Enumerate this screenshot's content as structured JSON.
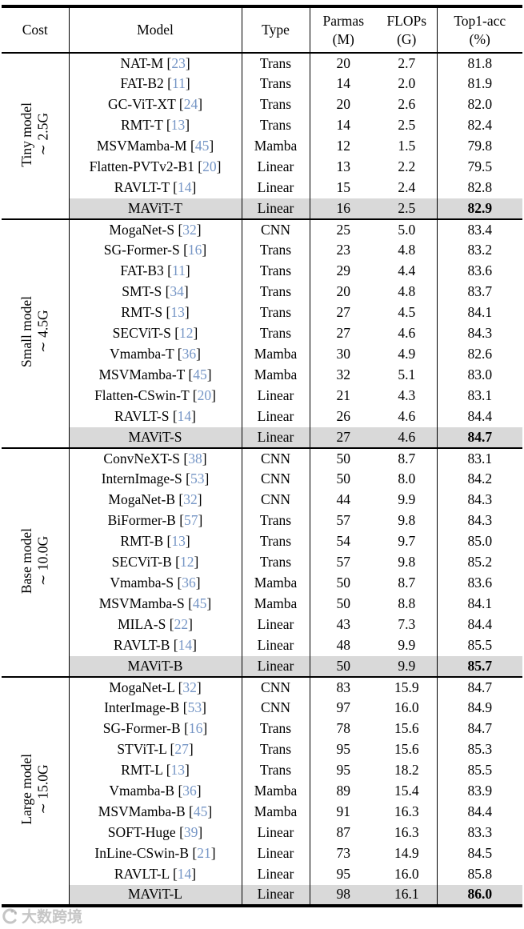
{
  "colors": {
    "citation_blue": "#7595c5",
    "highlight_gray": "#d9d9d9",
    "rule_black": "#000000",
    "watermark_gray": "#a9a9a9"
  },
  "header": {
    "cost": "Cost",
    "model": "Model",
    "type": "Type",
    "params": [
      "Parmas",
      "(M)"
    ],
    "flops": [
      "FLOPs",
      "(G)"
    ],
    "top1": [
      "Top1-acc",
      "(%)"
    ]
  },
  "watermark": {
    "text": "大数跨境",
    "icon": "logo-circle-icon"
  },
  "table": {
    "groups": [
      {
        "cost_line1": "Tiny model",
        "cost_line2": "∼ 2.5G",
        "rows": [
          {
            "model": "NAT-M",
            "cite": "23",
            "type": "Trans",
            "params": "20",
            "flops": "2.7",
            "top1": "81.8",
            "highlight": false
          },
          {
            "model": "FAT-B2",
            "cite": "11",
            "type": "Trans",
            "params": "14",
            "flops": "2.0",
            "top1": "81.9",
            "highlight": false
          },
          {
            "model": "GC-ViT-XT",
            "cite": "24",
            "type": "Trans",
            "params": "20",
            "flops": "2.6",
            "top1": "82.0",
            "highlight": false
          },
          {
            "model": "RMT-T",
            "cite": "13",
            "type": "Trans",
            "params": "14",
            "flops": "2.5",
            "top1": "82.4",
            "highlight": false
          },
          {
            "model": "MSVMamba-M",
            "cite": "45",
            "type": "Mamba",
            "params": "12",
            "flops": "1.5",
            "top1": "79.8",
            "highlight": false
          },
          {
            "model": "Flatten-PVTv2-B1",
            "cite": "20",
            "type": "Linear",
            "params": "13",
            "flops": "2.2",
            "top1": "79.5",
            "highlight": false
          },
          {
            "model": "RAVLT-T",
            "cite": "14",
            "type": "Linear",
            "params": "15",
            "flops": "2.4",
            "top1": "82.8",
            "highlight": false
          },
          {
            "model": "MAViT-T",
            "cite": null,
            "type": "Linear",
            "params": "16",
            "flops": "2.5",
            "top1": "82.9",
            "highlight": true
          }
        ]
      },
      {
        "cost_line1": "Small model",
        "cost_line2": "∼ 4.5G",
        "rows": [
          {
            "model": "MogaNet-S",
            "cite": "32",
            "type": "CNN",
            "params": "25",
            "flops": "5.0",
            "top1": "83.4",
            "highlight": false
          },
          {
            "model": "SG-Former-S",
            "cite": "16",
            "type": "Trans",
            "params": "23",
            "flops": "4.8",
            "top1": "83.2",
            "highlight": false
          },
          {
            "model": "FAT-B3",
            "cite": "11",
            "type": "Trans",
            "params": "29",
            "flops": "4.4",
            "top1": "83.6",
            "highlight": false
          },
          {
            "model": "SMT-S",
            "cite": "34",
            "type": "Trans",
            "params": "20",
            "flops": "4.8",
            "top1": "83.7",
            "highlight": false
          },
          {
            "model": "RMT-S",
            "cite": "13",
            "type": "Trans",
            "params": "27",
            "flops": "4.5",
            "top1": "84.1",
            "highlight": false
          },
          {
            "model": "SECViT-S",
            "cite": "12",
            "type": "Trans",
            "params": "27",
            "flops": "4.6",
            "top1": "84.3",
            "highlight": false
          },
          {
            "model": "Vmamba-T",
            "cite": "36",
            "type": "Mamba",
            "params": "30",
            "flops": "4.9",
            "top1": "82.6",
            "highlight": false
          },
          {
            "model": "MSVMamba-T",
            "cite": "45",
            "type": "Mamba",
            "params": "32",
            "flops": "5.1",
            "top1": "83.0",
            "highlight": false
          },
          {
            "model": "Flatten-CSwin-T",
            "cite": "20",
            "type": "Linear",
            "params": "21",
            "flops": "4.3",
            "top1": "83.1",
            "highlight": false
          },
          {
            "model": "RAVLT-S",
            "cite": "14",
            "type": "Linear",
            "params": "26",
            "flops": "4.6",
            "top1": "84.4",
            "highlight": false
          },
          {
            "model": "MAViT-S",
            "cite": null,
            "type": "Linear",
            "params": "27",
            "flops": "4.6",
            "top1": "84.7",
            "highlight": true
          }
        ]
      },
      {
        "cost_line1": "Base model",
        "cost_line2": "∼ 10.0G",
        "rows": [
          {
            "model": "ConvNeXT-S",
            "cite": "38",
            "type": "CNN",
            "params": "50",
            "flops": "8.7",
            "top1": "83.1",
            "highlight": false
          },
          {
            "model": "InternImage-S",
            "cite": "53",
            "type": "CNN",
            "params": "50",
            "flops": "8.0",
            "top1": "84.2",
            "highlight": false
          },
          {
            "model": "MogaNet-B",
            "cite": "32",
            "type": "CNN",
            "params": "44",
            "flops": "9.9",
            "top1": "84.3",
            "highlight": false
          },
          {
            "model": "BiFormer-B",
            "cite": "57",
            "type": "Trans",
            "params": "57",
            "flops": "9.8",
            "top1": "84.3",
            "highlight": false
          },
          {
            "model": "RMT-B",
            "cite": "13",
            "type": "Trans",
            "params": "54",
            "flops": "9.7",
            "top1": "85.0",
            "highlight": false
          },
          {
            "model": "SECViT-B",
            "cite": "12",
            "type": "Trans",
            "params": "57",
            "flops": "9.8",
            "top1": "85.2",
            "highlight": false
          },
          {
            "model": "Vmamba-S",
            "cite": "36",
            "type": "Mamba",
            "params": "50",
            "flops": "8.7",
            "top1": "83.6",
            "highlight": false
          },
          {
            "model": "MSVMamba-S",
            "cite": "45",
            "type": "Mamba",
            "params": "50",
            "flops": "8.8",
            "top1": "84.1",
            "highlight": false
          },
          {
            "model": "MILA-S",
            "cite": "22",
            "type": "Linear",
            "params": "43",
            "flops": "7.3",
            "top1": "84.4",
            "highlight": false
          },
          {
            "model": "RAVLT-B",
            "cite": "14",
            "type": "Linear",
            "params": "48",
            "flops": "9.9",
            "top1": "85.5",
            "highlight": false
          },
          {
            "model": "MAViT-B",
            "cite": null,
            "type": "Linear",
            "params": "50",
            "flops": "9.9",
            "top1": "85.7",
            "highlight": true
          }
        ]
      },
      {
        "cost_line1": "Large model",
        "cost_line2": "∼ 15.0G",
        "rows": [
          {
            "model": "MogaNet-L",
            "cite": "32",
            "type": "CNN",
            "params": "83",
            "flops": "15.9",
            "top1": "84.7",
            "highlight": false
          },
          {
            "model": "InterImage-B",
            "cite": "53",
            "type": "CNN",
            "params": "97",
            "flops": "16.0",
            "top1": "84.9",
            "highlight": false
          },
          {
            "model": "SG-Former-B",
            "cite": "16",
            "type": "Trans",
            "params": "78",
            "flops": "15.6",
            "top1": "84.7",
            "highlight": false
          },
          {
            "model": "STViT-L",
            "cite": "27",
            "type": "Trans",
            "params": "95",
            "flops": "15.6",
            "top1": "85.3",
            "highlight": false
          },
          {
            "model": "RMT-L",
            "cite": "13",
            "type": "Trans",
            "params": "95",
            "flops": "18.2",
            "top1": "85.5",
            "highlight": false
          },
          {
            "model": "Vmamba-B",
            "cite": "36",
            "type": "Mamba",
            "params": "89",
            "flops": "15.4",
            "top1": "83.9",
            "highlight": false
          },
          {
            "model": "MSVMamba-B",
            "cite": "45",
            "type": "Mamba",
            "params": "91",
            "flops": "16.3",
            "top1": "84.4",
            "highlight": false
          },
          {
            "model": "SOFT-Huge",
            "cite": "39",
            "type": "Linear",
            "params": "87",
            "flops": "16.3",
            "top1": "83.3",
            "highlight": false
          },
          {
            "model": "InLine-CSwin-B",
            "cite": "21",
            "type": "Linear",
            "params": "73",
            "flops": "14.9",
            "top1": "84.5",
            "highlight": false
          },
          {
            "model": "RAVLT-L",
            "cite": "14",
            "type": "Linear",
            "params": "95",
            "flops": "16.0",
            "top1": "85.8",
            "highlight": false
          },
          {
            "model": "MAViT-L",
            "cite": null,
            "type": "Linear",
            "params": "98",
            "flops": "16.1",
            "top1": "86.0",
            "highlight": true
          }
        ]
      }
    ]
  }
}
